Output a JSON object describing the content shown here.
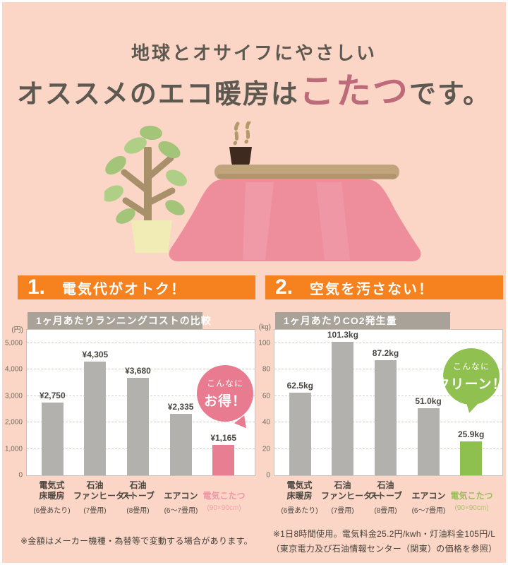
{
  "page": {
    "background_color": "#fbd5c5",
    "accent_orange": "#f5821e"
  },
  "header": {
    "line1": "地球とオサイフにやさしい",
    "line2_pre": "オススメのエコ暖房は",
    "line2_accent": "こたつ",
    "line2_post": "です。",
    "accent_color": "#bd6b7a"
  },
  "illustration": {
    "icons": [
      "potted-plant-illustration",
      "kotatsu-with-teacup-illustration"
    ]
  },
  "sections": [
    {
      "number": "1.",
      "title": "電気代がオトク！",
      "note_lines": [
        "※金額はメーカー機種・為替等で変動する場合があります。"
      ]
    },
    {
      "number": "2.",
      "title": "空気を汚さない！",
      "note_lines": [
        "※1日8時間使用。電気料金25.2円/kwh・灯油料金105円/L",
        "（東京電力及び石油情報センター（関東）の価格を参照）"
      ]
    }
  ],
  "chart_data": [
    {
      "type": "bar",
      "title": "1ヶ月あたりランニングコストの比較",
      "unit_label": "(円)",
      "ylim": [
        0,
        5500
      ],
      "grid": true,
      "yticks": [
        {
          "value": 5000,
          "label": "5,000"
        },
        {
          "value": 4000,
          "label": "4,000"
        },
        {
          "value": 3000,
          "label": "3,000"
        },
        {
          "value": 2000,
          "label": "2,000"
        },
        {
          "value": 1000,
          "label": "1,000"
        },
        {
          "value": 0,
          "label": "0"
        }
      ],
      "categories": [
        {
          "name_lines": [
            "電気式",
            "床暖房"
          ],
          "size_note": "(6畳あたり)",
          "highlight": false
        },
        {
          "name_lines": [
            "石油",
            "ファンヒーター"
          ],
          "size_note": "(7畳用)",
          "highlight": false
        },
        {
          "name_lines": [
            "石油",
            "ストーブ"
          ],
          "size_note": "(8畳用)",
          "highlight": false
        },
        {
          "name_lines": [
            "エアコン"
          ],
          "size_note": "(6～7畳用)",
          "highlight": false
        },
        {
          "name_lines": [
            "電気こたつ"
          ],
          "size_note": "(90×90cm)",
          "highlight": true
        }
      ],
      "values": [
        2750,
        4305,
        3680,
        2335,
        1165
      ],
      "value_labels": [
        "¥2,750",
        "¥4,305",
        "¥3,680",
        "¥2,335",
        "¥1,165"
      ],
      "bar_color": "#b3b1ae",
      "highlight_color": "#e87e92",
      "highlight_text_color": "#ef97a6",
      "badge": {
        "line1": "こんなに",
        "line2": "お得！",
        "color": "#e87b90",
        "tail": "right"
      }
    },
    {
      "type": "bar",
      "title": "1ヶ月あたりCO2発生量",
      "unit_label": "(kg)",
      "ylim": [
        0,
        110
      ],
      "grid": true,
      "yticks": [
        {
          "value": 100,
          "label": "100"
        },
        {
          "value": 80,
          "label": "80"
        },
        {
          "value": 60,
          "label": "60"
        },
        {
          "value": 40,
          "label": "40"
        },
        {
          "value": 20,
          "label": "20"
        },
        {
          "value": 0,
          "label": "0"
        }
      ],
      "categories": [
        {
          "name_lines": [
            "電気式",
            "床暖房"
          ],
          "size_note": "(6畳あたり)",
          "highlight": false
        },
        {
          "name_lines": [
            "石油",
            "ファンヒーター"
          ],
          "size_note": "(7畳用)",
          "highlight": false
        },
        {
          "name_lines": [
            "石油",
            "ストーブ"
          ],
          "size_note": "(8畳用)",
          "highlight": false
        },
        {
          "name_lines": [
            "エアコン"
          ],
          "size_note": "(6～7畳用)",
          "highlight": false
        },
        {
          "name_lines": [
            "電気こたつ"
          ],
          "size_note": "(90×90cm)",
          "highlight": true
        }
      ],
      "values": [
        62.5,
        101.3,
        87.2,
        51.0,
        25.9
      ],
      "value_labels": [
        "62.5kg",
        "101.3kg",
        "87.2kg",
        "51.0kg",
        "25.9kg"
      ],
      "bar_color": "#b3b1ae",
      "highlight_color": "#8dc04f",
      "highlight_text_color": "#9cbe5c",
      "badge": {
        "line1": "こんなに",
        "line2": "クリーン！",
        "color": "#90c150",
        "tail": "left"
      }
    }
  ]
}
